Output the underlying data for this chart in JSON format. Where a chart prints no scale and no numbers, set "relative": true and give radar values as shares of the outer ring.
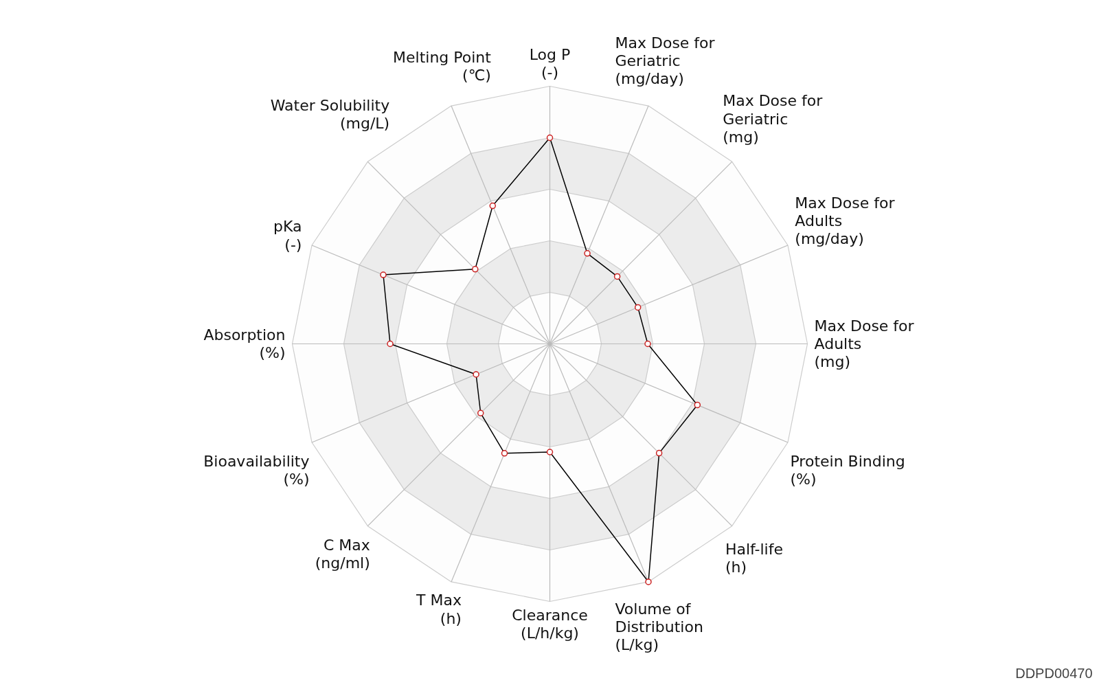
{
  "chart_data": {
    "type": "radar",
    "relative": true,
    "grid": true,
    "marker": "circle",
    "categories": [
      "Log P\n(-)",
      "Max Dose for Geriatric\n(mg/day)",
      "Max Dose for Geriatric\n(mg)",
      "Max Dose for Adults\n(mg/day)",
      "Max Dose for Adults\n(mg)",
      "Protein Binding\n(%)",
      "Half-life\n(h)",
      "Volume of Distribution\n(L/kg)",
      "Clearance\n(L/h/kg)",
      "T Max\n(h)",
      "C Max\n(ng/ml)",
      "Bioavailability\n(%)",
      "Absorption\n(%)",
      "pKa\n(-)",
      "Water Solubility\n(mg/L)",
      "Melting Point\n(℃)"
    ],
    "series": [
      {
        "color": "#000000",
        "values": [
          0.8,
          0.38,
          0.37,
          0.37,
          0.38,
          0.62,
          0.6,
          1.0,
          0.42,
          0.46,
          0.38,
          0.31,
          0.62,
          0.7,
          0.41,
          0.58
        ]
      }
    ],
    "annotations": [
      "DDPD00470"
    ]
  }
}
